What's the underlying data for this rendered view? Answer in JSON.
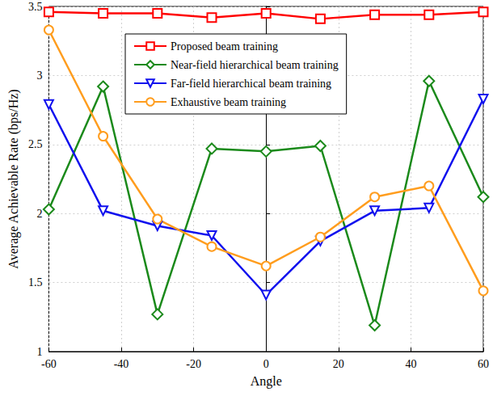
{
  "chart_data": {
    "type": "line",
    "x_label": "Angle",
    "y_label": "Average Achievable Rate (bps/Hz)",
    "x": [
      -60,
      -45,
      -30,
      -15,
      0,
      15,
      30,
      45,
      60
    ],
    "xlim": [
      -60,
      60
    ],
    "xticks": [
      -60,
      -40,
      -20,
      0,
      20,
      40,
      60
    ],
    "ylim": [
      1,
      3.5
    ],
    "yticks": [
      1,
      1.5,
      2,
      2.5,
      3,
      3.5
    ],
    "grid": true,
    "legend": "top",
    "series": [
      {
        "name": "Proposed beam training",
        "color": "#ff0000",
        "marker": "square",
        "values": [
          3.46,
          3.45,
          3.45,
          3.42,
          3.45,
          3.41,
          3.44,
          3.44,
          3.46
        ]
      },
      {
        "name": "Near-field hierarchical beam training",
        "color": "#1b8a1b",
        "marker": "diamond",
        "values": [
          2.03,
          2.92,
          1.27,
          2.47,
          2.45,
          2.49,
          1.19,
          2.96,
          2.12
        ]
      },
      {
        "name": "Far-field hierarchical beam training",
        "color": "#1010ee",
        "marker": "triangle_down",
        "values": [
          2.79,
          2.02,
          1.91,
          1.84,
          1.41,
          1.8,
          2.02,
          2.04,
          2.83
        ]
      },
      {
        "name": "Exhaustive beam training",
        "color": "#ff9d1e",
        "marker": "circle",
        "values": [
          3.33,
          2.56,
          1.96,
          1.76,
          1.62,
          1.83,
          2.12,
          2.2,
          1.44
        ]
      }
    ]
  }
}
